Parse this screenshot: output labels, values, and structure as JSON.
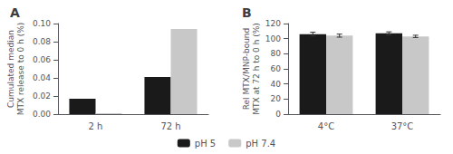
{
  "chart_data": [
    {
      "type": "bar",
      "title": "A",
      "categories": [
        "2 h",
        "72 h"
      ],
      "series": [
        {
          "name": "pH 5",
          "color": "#1a1a1a",
          "values": [
            0.017,
            0.041
          ]
        },
        {
          "name": "pH 7.4",
          "color": "#c8c8c8",
          "values": [
            0.001,
            0.094
          ]
        }
      ],
      "ylabel": "Cumulated median\nMTX release to 0 h (%)",
      "ylim": [
        0,
        0.1
      ],
      "yticks": [
        {
          "value": 0.0,
          "label": "0.00"
        },
        0.02,
        0.04,
        0.06,
        0.08,
        {
          "value": 0.1,
          "label": "0.10"
        }
      ],
      "grid": false,
      "legend": "bottom"
    },
    {
      "type": "bar",
      "title": "B",
      "categories": [
        "4°C",
        "37°C"
      ],
      "series": [
        {
          "name": "pH 5",
          "color": "#1a1a1a",
          "values": [
            106,
            107
          ],
          "errors": [
            2.5,
            2.0
          ]
        },
        {
          "name": "pH 7.4",
          "color": "#c8c8c8",
          "values": [
            104,
            103
          ],
          "errors": [
            2.0,
            1.5
          ]
        }
      ],
      "ylabel": "Rel MTX/MNP-bound\nMTX at 72 h to 0 h (%)",
      "ylim": [
        0,
        120
      ],
      "yticks": [
        0,
        20,
        40,
        60,
        80,
        100,
        120
      ],
      "grid": false,
      "legend": "bottom"
    }
  ]
}
